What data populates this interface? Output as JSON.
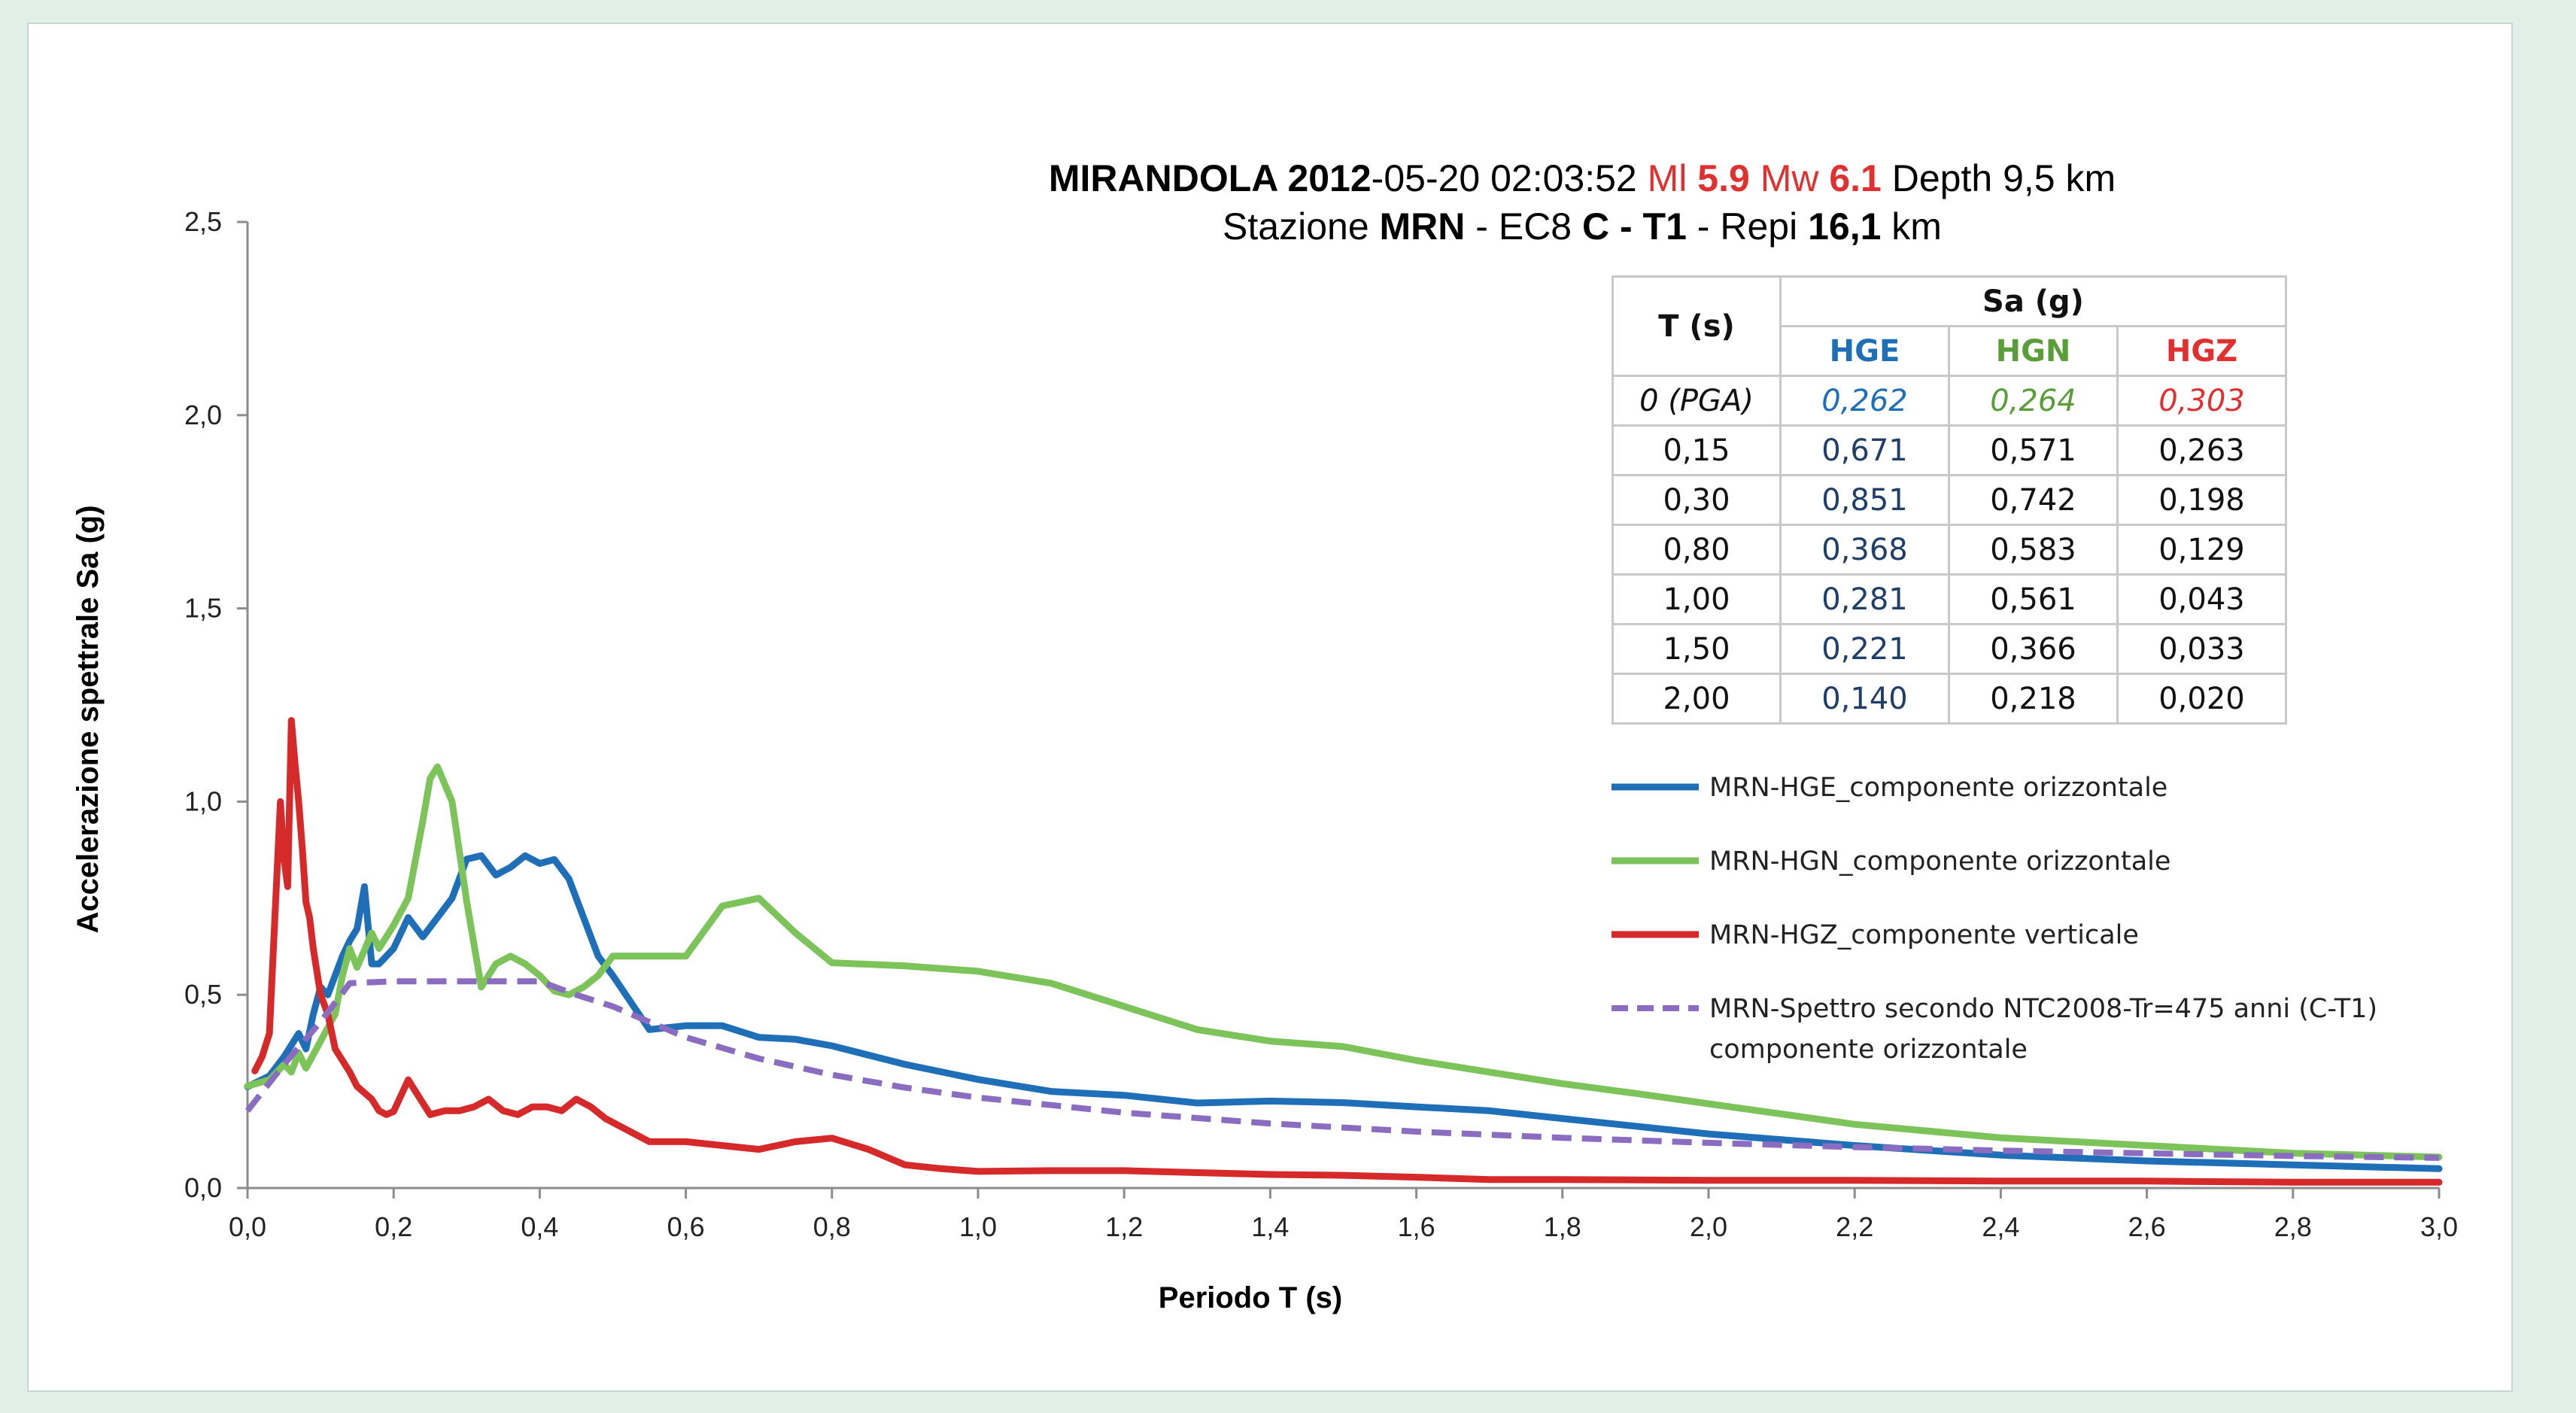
{
  "title": {
    "line1": [
      {
        "t": "MIRANDOLA ",
        "b": true,
        "c": ""
      },
      {
        "t": "2012",
        "b": true,
        "c": ""
      },
      {
        "t": "-05-20 02:03:52 ",
        "b": false,
        "c": ""
      },
      {
        "t": "Ml ",
        "b": false,
        "c": "red"
      },
      {
        "t": "5.9",
        "b": true,
        "c": "red"
      },
      {
        "t": " Mw ",
        "b": false,
        "c": "red"
      },
      {
        "t": "6.1",
        "b": true,
        "c": "red"
      },
      {
        "t": " Depth 9,5 km",
        "b": false,
        "c": ""
      }
    ],
    "line2": [
      {
        "t": "Stazione ",
        "b": false,
        "c": ""
      },
      {
        "t": "MRN",
        "b": true,
        "c": ""
      },
      {
        "t": " - EC8 ",
        "b": false,
        "c": ""
      },
      {
        "t": "C - T1",
        "b": true,
        "c": ""
      },
      {
        "t": " - Repi ",
        "b": false,
        "c": ""
      },
      {
        "t": "16,1",
        "b": true,
        "c": ""
      },
      {
        "t": " km",
        "b": false,
        "c": ""
      }
    ]
  },
  "table": {
    "col_t": "T (s)",
    "group_header": "Sa (g)",
    "cols": [
      "HGE",
      "HGN",
      "HGZ"
    ],
    "rows": [
      {
        "t": "0 (PGA)",
        "v": [
          "0,262",
          "0,264",
          "0,303"
        ],
        "bold": [
          false,
          false,
          false
        ],
        "italic": true
      },
      {
        "t": "0,15",
        "v": [
          "0,671",
          "0,571",
          "0,263"
        ],
        "bold": [
          true,
          false,
          true
        ],
        "italic": false
      },
      {
        "t": "0,30",
        "v": [
          "0,851",
          "0,742",
          "0,198"
        ],
        "bold": [
          true,
          false,
          true
        ],
        "italic": false
      },
      {
        "t": "0,80",
        "v": [
          "0,368",
          "0,583",
          "0,129"
        ],
        "bold": [
          false,
          true,
          true
        ],
        "italic": false
      },
      {
        "t": "1,00",
        "v": [
          "0,281",
          "0,561",
          "0,043"
        ],
        "bold": [
          false,
          true,
          false
        ],
        "italic": false
      },
      {
        "t": "1,50",
        "v": [
          "0,221",
          "0,366",
          "0,033"
        ],
        "bold": [
          false,
          true,
          false
        ],
        "italic": false
      },
      {
        "t": "2,00",
        "v": [
          "0,140",
          "0,218",
          "0,020"
        ],
        "bold": [
          false,
          true,
          false
        ],
        "italic": false
      }
    ]
  },
  "chart_data": {
    "type": "line",
    "xlabel": "Periodo T (s)",
    "ylabel": "Accelerazione spettrale Sa (g)",
    "xlim": [
      0,
      3.0
    ],
    "ylim": [
      0,
      2.5
    ],
    "xticks": [
      "0,0",
      "0,2",
      "0,4",
      "0,6",
      "0,8",
      "1,0",
      "1,2",
      "1,4",
      "1,6",
      "1,8",
      "2,0",
      "2,2",
      "2,4",
      "2,6",
      "2,8",
      "3,0"
    ],
    "yticks": [
      "0,0",
      "0,5",
      "1,0",
      "1,5",
      "2,0",
      "2,5"
    ],
    "grid": false,
    "legend_position": "right",
    "series": [
      {
        "name": "MRN-HGE_componente orizzontale",
        "color": "#1f6fb8",
        "dash": false,
        "x": [
          0,
          0.03,
          0.05,
          0.07,
          0.08,
          0.09,
          0.1,
          0.11,
          0.12,
          0.13,
          0.14,
          0.15,
          0.16,
          0.17,
          0.18,
          0.2,
          0.22,
          0.24,
          0.26,
          0.28,
          0.3,
          0.32,
          0.34,
          0.36,
          0.38,
          0.4,
          0.42,
          0.44,
          0.46,
          0.48,
          0.5,
          0.55,
          0.6,
          0.65,
          0.7,
          0.75,
          0.8,
          0.9,
          1.0,
          1.1,
          1.2,
          1.3,
          1.4,
          1.5,
          1.6,
          1.7,
          1.8,
          1.9,
          2.0,
          2.2,
          2.4,
          2.6,
          2.8,
          3.0
        ],
        "y": [
          0.262,
          0.29,
          0.34,
          0.4,
          0.36,
          0.45,
          0.52,
          0.5,
          0.55,
          0.6,
          0.64,
          0.671,
          0.78,
          0.58,
          0.58,
          0.62,
          0.7,
          0.65,
          0.7,
          0.75,
          0.851,
          0.86,
          0.81,
          0.83,
          0.86,
          0.84,
          0.85,
          0.8,
          0.7,
          0.6,
          0.55,
          0.41,
          0.42,
          0.42,
          0.39,
          0.385,
          0.368,
          0.32,
          0.281,
          0.25,
          0.24,
          0.22,
          0.225,
          0.221,
          0.21,
          0.2,
          0.18,
          0.16,
          0.14,
          0.11,
          0.085,
          0.07,
          0.06,
          0.05
        ]
      },
      {
        "name": "MRN-HGN_componente orizzontale",
        "color": "#7cc35a",
        "dash": false,
        "x": [
          0,
          0.03,
          0.05,
          0.06,
          0.07,
          0.08,
          0.1,
          0.12,
          0.13,
          0.14,
          0.15,
          0.17,
          0.18,
          0.2,
          0.22,
          0.24,
          0.25,
          0.26,
          0.28,
          0.3,
          0.32,
          0.34,
          0.36,
          0.38,
          0.4,
          0.42,
          0.44,
          0.46,
          0.48,
          0.5,
          0.55,
          0.6,
          0.65,
          0.7,
          0.75,
          0.8,
          0.9,
          1.0,
          1.1,
          1.2,
          1.3,
          1.4,
          1.5,
          1.6,
          1.7,
          1.8,
          1.9,
          2.0,
          2.2,
          2.4,
          2.6,
          2.8,
          3.0
        ],
        "y": [
          0.264,
          0.28,
          0.32,
          0.3,
          0.35,
          0.31,
          0.38,
          0.45,
          0.55,
          0.62,
          0.571,
          0.66,
          0.62,
          0.68,
          0.75,
          0.95,
          1.06,
          1.09,
          1.0,
          0.742,
          0.52,
          0.58,
          0.6,
          0.58,
          0.55,
          0.51,
          0.5,
          0.52,
          0.55,
          0.6,
          0.6,
          0.6,
          0.73,
          0.75,
          0.66,
          0.583,
          0.575,
          0.561,
          0.53,
          0.47,
          0.41,
          0.38,
          0.366,
          0.33,
          0.3,
          0.27,
          0.245,
          0.218,
          0.165,
          0.13,
          0.11,
          0.09,
          0.08
        ]
      },
      {
        "name": "MRN-HGZ_componente verticale",
        "color": "#d62a2a",
        "dash": false,
        "x": [
          0.01,
          0.02,
          0.03,
          0.04,
          0.045,
          0.05,
          0.055,
          0.06,
          0.065,
          0.07,
          0.075,
          0.08,
          0.085,
          0.09,
          0.1,
          0.11,
          0.12,
          0.13,
          0.14,
          0.15,
          0.17,
          0.18,
          0.19,
          0.2,
          0.22,
          0.24,
          0.25,
          0.27,
          0.29,
          0.31,
          0.33,
          0.35,
          0.37,
          0.39,
          0.41,
          0.43,
          0.45,
          0.47,
          0.49,
          0.52,
          0.55,
          0.6,
          0.65,
          0.7,
          0.75,
          0.8,
          0.85,
          0.9,
          0.95,
          1.0,
          1.1,
          1.2,
          1.3,
          1.4,
          1.5,
          1.6,
          1.7,
          1.8,
          2.0,
          2.2,
          2.4,
          2.6,
          2.8,
          3.0
        ],
        "y": [
          0.303,
          0.34,
          0.4,
          0.8,
          1.0,
          0.85,
          0.78,
          1.21,
          1.1,
          1.0,
          0.88,
          0.74,
          0.7,
          0.62,
          0.5,
          0.45,
          0.36,
          0.33,
          0.3,
          0.263,
          0.23,
          0.2,
          0.19,
          0.198,
          0.28,
          0.22,
          0.19,
          0.2,
          0.2,
          0.21,
          0.23,
          0.2,
          0.19,
          0.21,
          0.21,
          0.2,
          0.23,
          0.21,
          0.18,
          0.15,
          0.12,
          0.12,
          0.11,
          0.1,
          0.12,
          0.129,
          0.1,
          0.06,
          0.05,
          0.043,
          0.045,
          0.045,
          0.04,
          0.035,
          0.033,
          0.028,
          0.022,
          0.022,
          0.02,
          0.02,
          0.018,
          0.018,
          0.015,
          0.015
        ]
      },
      {
        "name": "MRN-Spettro secondo NTC2008-Tr=475 anni (C-T1) componente orizzontale",
        "name_lines": [
          "MRN-Spettro secondo NTC2008-Tr=475 anni (C-T1)",
          "componente orizzontale"
        ],
        "color": "#8a6cc0",
        "dash": true,
        "x": [
          0,
          0.05,
          0.1,
          0.14,
          0.2,
          0.3,
          0.4,
          0.45,
          0.5,
          0.6,
          0.7,
          0.8,
          0.9,
          1.0,
          1.2,
          1.4,
          1.6,
          1.8,
          2.0,
          2.2,
          2.4,
          2.6,
          2.8,
          3.0
        ],
        "y": [
          0.2,
          0.32,
          0.43,
          0.53,
          0.535,
          0.535,
          0.535,
          0.5,
          0.47,
          0.39,
          0.335,
          0.293,
          0.26,
          0.234,
          0.195,
          0.167,
          0.146,
          0.13,
          0.117,
          0.106,
          0.097,
          0.09,
          0.083,
          0.078
        ]
      }
    ]
  }
}
